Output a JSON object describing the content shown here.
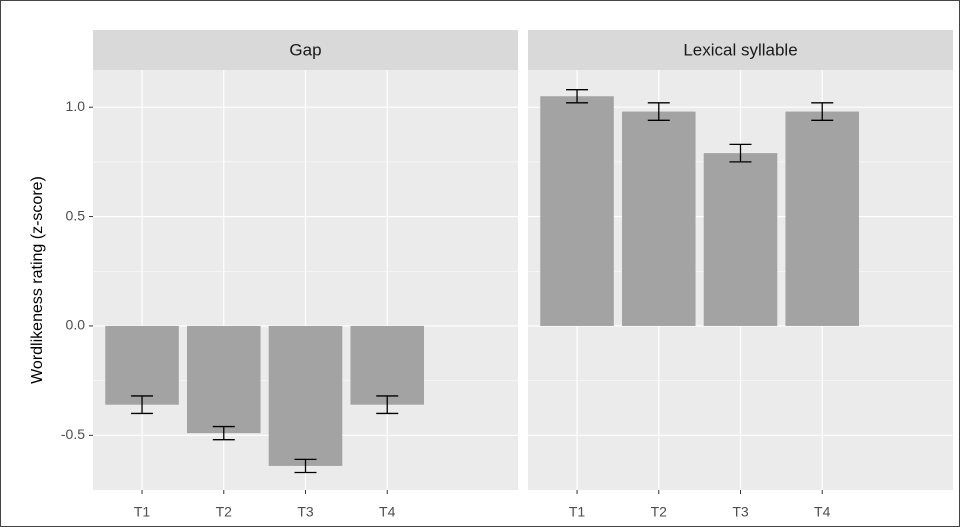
{
  "chart_data": {
    "type": "bar",
    "ylabel": "Wordlikeness rating (z-score)",
    "ylim": [
      -0.75,
      1.17
    ],
    "yticks": [
      -0.5,
      {
        "value": 0,
        "label": "0.0"
      },
      0.5,
      {
        "value": 1,
        "label": "1.0"
      }
    ],
    "color": "#a3a3a3",
    "grid": true,
    "facets": [
      {
        "title": "Gap",
        "categories": [
          "T1",
          "T2",
          "T3",
          "T4"
        ],
        "values": [
          -0.36,
          -0.49,
          -0.64,
          -0.36
        ],
        "errors": [
          0.04,
          0.03,
          0.03,
          0.04
        ]
      },
      {
        "title": "Lexical syllable",
        "categories": [
          "T1",
          "T2",
          "T3",
          "T4"
        ],
        "values": [
          1.05,
          0.98,
          0.79,
          0.98
        ],
        "errors": [
          0.03,
          0.04,
          0.04,
          0.04
        ]
      }
    ]
  }
}
